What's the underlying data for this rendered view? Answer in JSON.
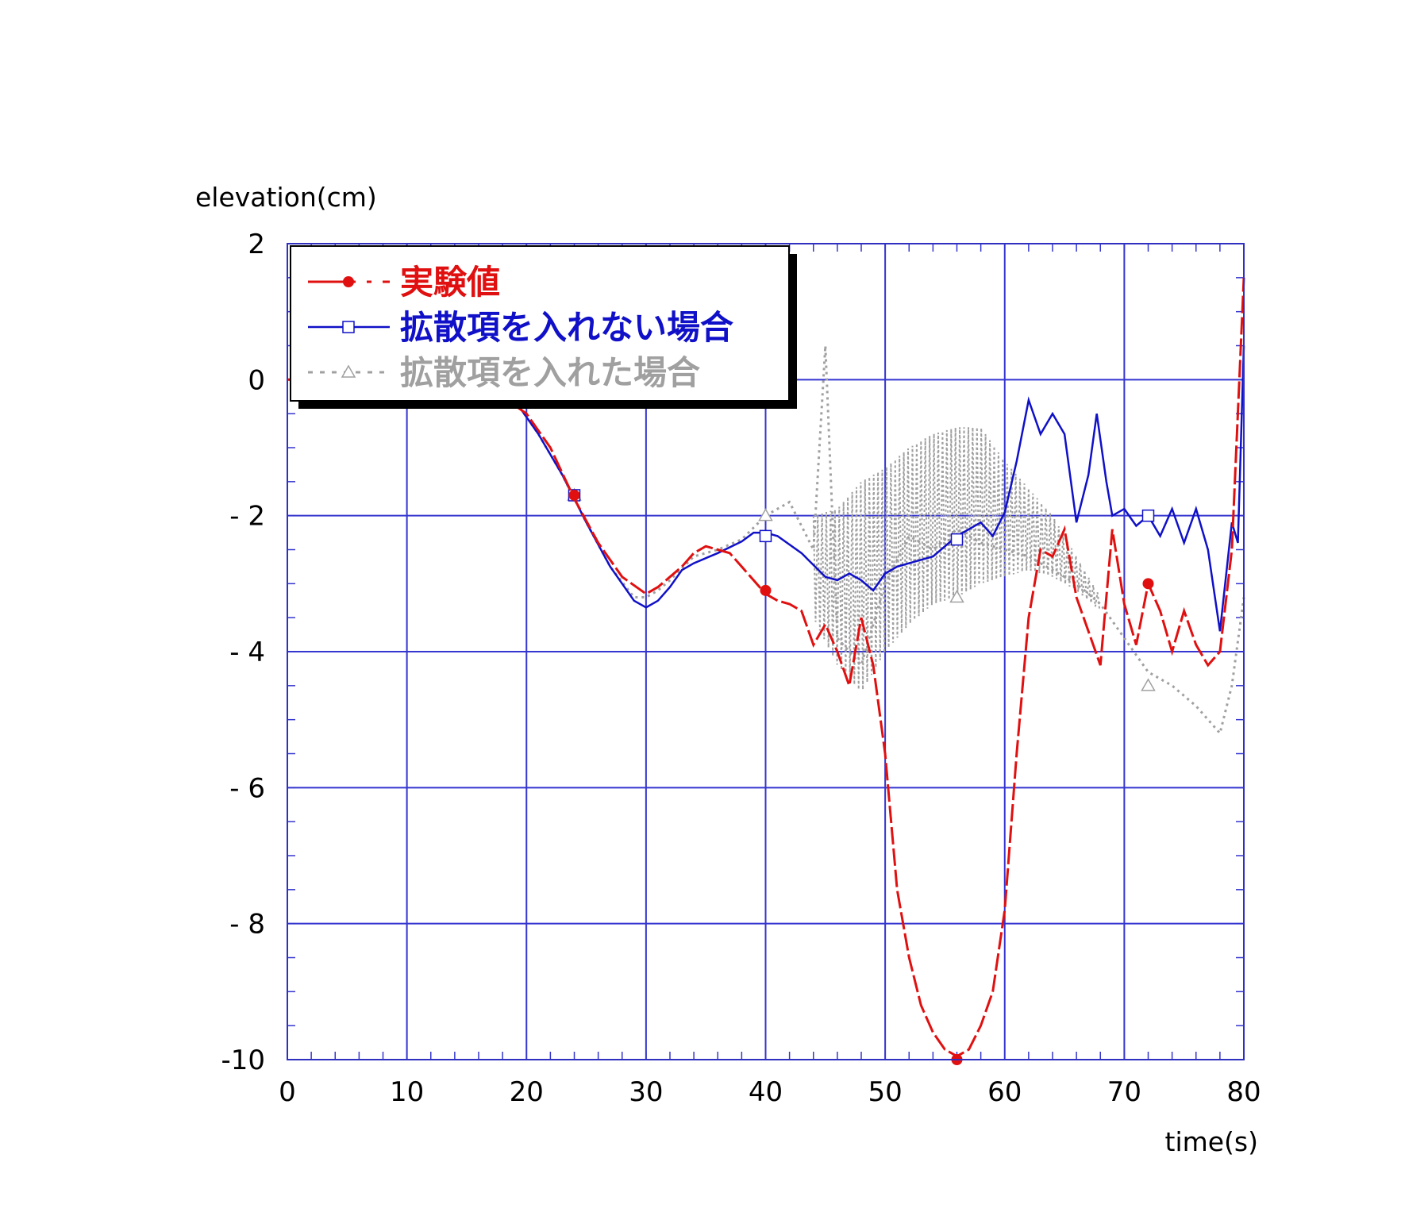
{
  "chart_data": {
    "type": "line",
    "title": "",
    "xlabel": "time(s)",
    "ylabel": "elevation(cm)",
    "xlim": [
      0,
      80
    ],
    "ylim": [
      -10,
      2
    ],
    "x_ticks": [
      0,
      10,
      20,
      30,
      40,
      50,
      60,
      70,
      80
    ],
    "y_ticks": [
      2,
      0,
      -2,
      -4,
      -6,
      -8,
      -10
    ],
    "x_tick_labels": [
      "0",
      "10",
      "20",
      "30",
      "40",
      "50",
      "60",
      "70",
      "80"
    ],
    "y_tick_labels": [
      "2",
      "0",
      "- 2",
      "- 4",
      "- 6",
      "- 8",
      "-10"
    ],
    "grid": true,
    "legend_position": "top-left",
    "series": [
      {
        "name": "実験値",
        "color": "#e01010",
        "style": "dashed",
        "marker": "filled-circle",
        "points": [
          [
            0,
            0
          ],
          [
            10,
            0
          ],
          [
            16,
            0
          ],
          [
            20,
            -0.5
          ],
          [
            22,
            -1.0
          ],
          [
            24,
            -1.75
          ],
          [
            26,
            -2.4
          ],
          [
            28,
            -2.9
          ],
          [
            30,
            -3.15
          ],
          [
            31,
            -3.05
          ],
          [
            32,
            -2.9
          ],
          [
            33,
            -2.75
          ],
          [
            34,
            -2.55
          ],
          [
            35,
            -2.45
          ],
          [
            36,
            -2.5
          ],
          [
            37,
            -2.55
          ],
          [
            38,
            -2.75
          ],
          [
            39,
            -2.95
          ],
          [
            40,
            -3.15
          ],
          [
            41,
            -3.25
          ],
          [
            42,
            -3.3
          ],
          [
            43,
            -3.4
          ],
          [
            44,
            -3.9
          ],
          [
            45,
            -3.6
          ],
          [
            46,
            -4.0
          ],
          [
            47,
            -4.5
          ],
          [
            48,
            -3.5
          ],
          [
            49,
            -4.2
          ],
          [
            50,
            -5.5
          ],
          [
            51,
            -7.5
          ],
          [
            52,
            -8.5
          ],
          [
            53,
            -9.2
          ],
          [
            54,
            -9.6
          ],
          [
            55,
            -9.85
          ],
          [
            56,
            -9.95
          ],
          [
            57,
            -9.85
          ],
          [
            58,
            -9.5
          ],
          [
            59,
            -9.0
          ],
          [
            60,
            -7.8
          ],
          [
            61,
            -5.5
          ],
          [
            62,
            -3.5
          ],
          [
            63,
            -2.5
          ],
          [
            64,
            -2.6
          ],
          [
            65,
            -2.2
          ],
          [
            66,
            -3.2
          ],
          [
            67,
            -3.7
          ],
          [
            68,
            -4.2
          ],
          [
            69,
            -2.2
          ],
          [
            70,
            -3.3
          ],
          [
            71,
            -3.9
          ],
          [
            72,
            -3.0
          ],
          [
            73,
            -3.4
          ],
          [
            74,
            -4.0
          ],
          [
            75,
            -3.4
          ],
          [
            76,
            -3.9
          ],
          [
            77,
            -4.2
          ],
          [
            78,
            -4.0
          ],
          [
            79,
            -2.5
          ],
          [
            80,
            1.5
          ]
        ],
        "marker_points": [
          [
            24,
            -1.7
          ],
          [
            40,
            -3.1
          ],
          [
            56,
            -10.0
          ],
          [
            72,
            -3.0
          ]
        ]
      },
      {
        "name": "拡散項を入れない場合",
        "color": "#1010c8",
        "style": "solid",
        "marker": "open-square",
        "points": [
          [
            0,
            0
          ],
          [
            10,
            0
          ],
          [
            16,
            -0.05
          ],
          [
            19,
            -0.3
          ],
          [
            21,
            -0.8
          ],
          [
            23,
            -1.4
          ],
          [
            25,
            -2.1
          ],
          [
            27,
            -2.75
          ],
          [
            29,
            -3.25
          ],
          [
            30,
            -3.35
          ],
          [
            31,
            -3.25
          ],
          [
            32,
            -3.05
          ],
          [
            33,
            -2.8
          ],
          [
            34,
            -2.7
          ],
          [
            36,
            -2.55
          ],
          [
            38,
            -2.38
          ],
          [
            39,
            -2.25
          ],
          [
            40,
            -2.25
          ],
          [
            41,
            -2.3
          ],
          [
            43,
            -2.55
          ],
          [
            45,
            -2.9
          ],
          [
            46,
            -2.95
          ],
          [
            47,
            -2.85
          ],
          [
            48,
            -2.95
          ],
          [
            49,
            -3.1
          ],
          [
            50,
            -2.85
          ],
          [
            51,
            -2.75
          ],
          [
            52,
            -2.7
          ],
          [
            54,
            -2.6
          ],
          [
            56,
            -2.3
          ],
          [
            58,
            -2.1
          ],
          [
            59,
            -2.3
          ],
          [
            60,
            -1.95
          ],
          [
            61,
            -1.2
          ],
          [
            62,
            -0.3
          ],
          [
            63,
            -0.8
          ],
          [
            64,
            -0.5
          ],
          [
            65,
            -0.8
          ],
          [
            66,
            -2.1
          ],
          [
            67,
            -1.4
          ],
          [
            67.7,
            -0.5
          ],
          [
            68.5,
            -1.5
          ],
          [
            69,
            -2.0
          ],
          [
            70,
            -1.9
          ],
          [
            71,
            -2.15
          ],
          [
            72,
            -2.0
          ],
          [
            73,
            -2.3
          ],
          [
            74,
            -1.9
          ],
          [
            75,
            -2.4
          ],
          [
            76,
            -1.9
          ],
          [
            77,
            -2.5
          ],
          [
            78,
            -3.7
          ],
          [
            79,
            -2.1
          ],
          [
            79.5,
            -2.4
          ],
          [
            80,
            0.5
          ]
        ],
        "marker_points": [
          [
            24,
            -1.7
          ],
          [
            40,
            -2.3
          ],
          [
            56,
            -2.35
          ],
          [
            72,
            -2.0
          ]
        ]
      },
      {
        "name": "拡散項を入れた場合",
        "color": "#a0a0a0",
        "style": "dotted",
        "marker": "open-triangle",
        "points": [
          [
            0,
            0
          ],
          [
            10,
            0
          ],
          [
            16,
            -0.05
          ],
          [
            19,
            -0.3
          ],
          [
            21,
            -0.8
          ],
          [
            23,
            -1.4
          ],
          [
            25,
            -2.1
          ],
          [
            27,
            -2.75
          ],
          [
            29,
            -3.2
          ],
          [
            30,
            -3.2
          ],
          [
            31,
            -3.1
          ],
          [
            32,
            -2.95
          ],
          [
            34,
            -2.6
          ],
          [
            36,
            -2.5
          ],
          [
            38,
            -2.35
          ],
          [
            40,
            -2.0
          ],
          [
            42,
            -1.8
          ],
          [
            44,
            -2.5
          ],
          [
            45,
            0.5
          ],
          [
            46,
            -3.8
          ],
          [
            48,
            -4.2
          ],
          [
            50,
            -3.0
          ],
          [
            52,
            -2.3
          ],
          [
            54,
            -2.5
          ],
          [
            56,
            -2.2
          ],
          [
            58,
            -2.4
          ],
          [
            60,
            -2.5
          ],
          [
            62,
            -2.6
          ],
          [
            64,
            -2.8
          ],
          [
            66,
            -3.0
          ],
          [
            68,
            -3.3
          ],
          [
            70,
            -3.8
          ],
          [
            72,
            -4.3
          ],
          [
            74,
            -4.5
          ],
          [
            76,
            -4.8
          ],
          [
            78,
            -5.2
          ],
          [
            79,
            -4.5
          ],
          [
            80,
            -3.2
          ]
        ],
        "band": {
          "x_start": 44,
          "x_end": 68,
          "upper": [
            [
              44,
              -2.0
            ],
            [
              46,
              -1.9
            ],
            [
              48,
              -1.5
            ],
            [
              50,
              -1.3
            ],
            [
              52,
              -1.0
            ],
            [
              54,
              -0.8
            ],
            [
              56,
              -0.7
            ],
            [
              58,
              -0.7
            ],
            [
              60,
              -1.2
            ],
            [
              62,
              -1.6
            ],
            [
              64,
              -2.0
            ],
            [
              66,
              -2.6
            ],
            [
              68,
              -3.2
            ]
          ],
          "lower": [
            [
              44,
              -3.5
            ],
            [
              46,
              -4.2
            ],
            [
              48,
              -4.6
            ],
            [
              50,
              -4.0
            ],
            [
              52,
              -3.6
            ],
            [
              54,
              -3.3
            ],
            [
              56,
              -3.2
            ],
            [
              58,
              -3.0
            ],
            [
              60,
              -2.9
            ],
            [
              62,
              -2.8
            ],
            [
              64,
              -2.9
            ],
            [
              66,
              -3.1
            ],
            [
              68,
              -3.4
            ]
          ]
        },
        "marker_points": [
          [
            24,
            -1.7
          ],
          [
            40,
            -2.0
          ],
          [
            56,
            -3.2
          ],
          [
            72,
            -4.5
          ]
        ]
      }
    ]
  }
}
